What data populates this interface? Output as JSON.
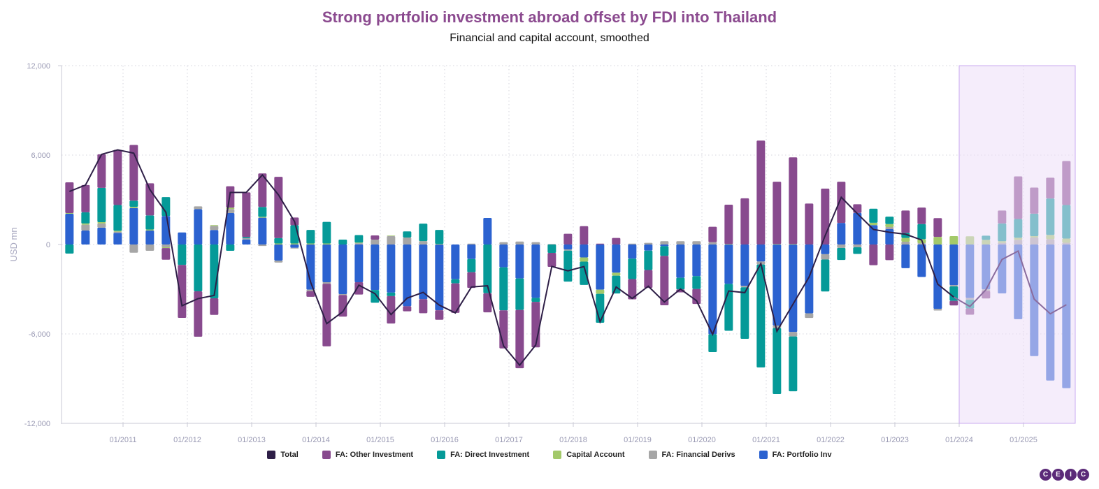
{
  "chart_data": {
    "type": "bar",
    "stacked": true,
    "title": "Strong portfolio investment abroad offset by FDI into Thailand",
    "subtitle": "Financial and capital account, smoothed",
    "ylabel": "USD mn",
    "xlabel": "",
    "ylim": [
      -12000,
      12000
    ],
    "yticks": [
      12000,
      6000,
      0,
      -6000,
      -12000
    ],
    "ytick_labels": [
      "12,000",
      "6,000",
      "0",
      "-6,000",
      "-12,000"
    ],
    "xtick_labels": [
      "01/2011",
      "01/2012",
      "01/2013",
      "01/2014",
      "01/2015",
      "01/2016",
      "01/2017",
      "01/2018",
      "01/2019",
      "01/2020",
      "01/2021",
      "01/2022",
      "01/2023",
      "01/2024",
      "01/2025"
    ],
    "grid": true,
    "legend_position": "bottom",
    "highlight": {
      "from": "2024-01",
      "color": "#ecdff8"
    },
    "x": [
      "2010-03",
      "2010-06",
      "2010-09",
      "2010-12",
      "2011-03",
      "2011-06",
      "2011-09",
      "2011-12",
      "2012-03",
      "2012-06",
      "2012-09",
      "2012-12",
      "2013-03",
      "2013-06",
      "2013-09",
      "2013-12",
      "2014-03",
      "2014-06",
      "2014-09",
      "2014-12",
      "2015-03",
      "2015-06",
      "2015-09",
      "2015-12",
      "2016-03",
      "2016-06",
      "2016-09",
      "2016-12",
      "2017-03",
      "2017-06",
      "2017-09",
      "2017-12",
      "2018-03",
      "2018-06",
      "2018-09",
      "2018-12",
      "2019-03",
      "2019-06",
      "2019-09",
      "2019-12",
      "2020-03",
      "2020-06",
      "2020-09",
      "2020-12",
      "2021-03",
      "2021-06",
      "2021-09",
      "2021-12",
      "2022-03",
      "2022-06",
      "2022-09",
      "2022-12",
      "2023-03",
      "2023-06",
      "2023-09",
      "2023-12",
      "2024-03",
      "2024-06",
      "2024-09",
      "2024-12",
      "2025-03",
      "2025-06",
      "2025-09"
    ],
    "series": [
      {
        "name": "FA: Portfolio Inv",
        "color": "#2b62d0",
        "values": [
          2060,
          940,
          1130,
          780,
          2450,
          940,
          1910,
          810,
          2370,
          970,
          2110,
          340,
          1800,
          -1080,
          -220,
          -3030,
          -2530,
          -3330,
          -2530,
          -3050,
          -3230,
          -4140,
          -3670,
          -4410,
          -2330,
          -970,
          1780,
          -1530,
          -2280,
          -3580,
          0,
          -330,
          -870,
          -3030,
          -1890,
          -950,
          -410,
          -110,
          -2230,
          -2120,
          -6020,
          -2640,
          -2780,
          -1140,
          -5440,
          -5870,
          -4620,
          -650,
          1450,
          2120,
          1300,
          1030,
          -1590,
          -2180,
          -4320,
          -2730,
          -3590,
          -3010,
          -3280,
          -5010,
          -7490,
          -9130,
          -9640
        ]
      },
      {
        "name": "FA: Financial Derivs",
        "color": "#a6a6a6",
        "values": [
          0,
          390,
          280,
          80,
          -550,
          -420,
          -190,
          0,
          190,
          280,
          270,
          80,
          -100,
          -130,
          -50,
          -100,
          -100,
          -60,
          90,
          330,
          560,
          470,
          230,
          0,
          0,
          60,
          0,
          160,
          200,
          160,
          30,
          -80,
          0,
          0,
          0,
          60,
          110,
          220,
          220,
          220,
          160,
          0,
          -90,
          -200,
          -160,
          -300,
          -310,
          -360,
          -230,
          -190,
          0,
          140,
          190,
          90,
          -110,
          -80,
          -120,
          -110,
          110,
          310,
          470,
          360,
          120
        ]
      },
      {
        "name": "Capital Account",
        "color": "#a3c96a",
        "values": [
          50,
          80,
          90,
          60,
          80,
          70,
          -50,
          0,
          0,
          50,
          90,
          0,
          60,
          70,
          70,
          70,
          70,
          0,
          40,
          0,
          40,
          0,
          0,
          40,
          0,
          0,
          0,
          0,
          0,
          0,
          0,
          0,
          -280,
          -280,
          -200,
          0,
          0,
          0,
          0,
          0,
          0,
          30,
          0,
          0,
          30,
          30,
          0,
          0,
          0,
          0,
          160,
          200,
          250,
          270,
          510,
          560,
          550,
          310,
          110,
          140,
          90,
          280,
          280
        ]
      },
      {
        "name": "FA: Direct Investment",
        "color": "#059a98",
        "values": [
          -610,
          750,
          2300,
          1730,
          410,
          940,
          1270,
          -1370,
          -3140,
          -3610,
          -420,
          80,
          660,
          360,
          1220,
          910,
          1450,
          330,
          500,
          -860,
          -230,
          410,
          1170,
          940,
          -280,
          -890,
          -3270,
          -2890,
          -2110,
          -270,
          -560,
          -2080,
          -1560,
          -1940,
          -1200,
          -1370,
          -1300,
          -660,
          -780,
          -860,
          -1200,
          -3150,
          -3460,
          -6910,
          -4430,
          -3680,
          0,
          -2140,
          -810,
          -440,
          940,
          500,
          340,
          1010,
          0,
          -970,
          -580,
          280,
          1190,
          1260,
          1510,
          2450,
          2250
        ]
      },
      {
        "name": "FA: Other Investment",
        "color": "#884a8e",
        "values": [
          2060,
          1830,
          2250,
          3700,
          3740,
          2160,
          -780,
          -3550,
          -3050,
          -1110,
          1440,
          3000,
          2250,
          4110,
          520,
          -380,
          -4200,
          -1450,
          -830,
          280,
          -1840,
          -340,
          -940,
          -640,
          -1980,
          -1050,
          -1280,
          -2550,
          -3910,
          -3050,
          -940,
          720,
          1230,
          60,
          440,
          -1360,
          -1200,
          -3310,
          -200,
          -1010,
          1030,
          2640,
          3100,
          6970,
          4180,
          5820,
          2750,
          3750,
          2760,
          580,
          -1390,
          -1050,
          1500,
          1110,
          1260,
          -310,
          -420,
          -500,
          870,
          2860,
          1750,
          1390,
          2950
        ]
      }
    ],
    "line_series": {
      "name": "Total",
      "color": "#2e1f47",
      "values": [
        3560,
        3990,
        6050,
        6350,
        6130,
        3690,
        2160,
        -4110,
        -3630,
        -3420,
        3490,
        3500,
        4670,
        3330,
        1540,
        -2530,
        -5310,
        -4510,
        -2730,
        -3300,
        -4700,
        -3600,
        -3210,
        -4070,
        -4590,
        -2850,
        -2770,
        -6810,
        -8100,
        -6740,
        -1470,
        -1770,
        -1480,
        -5190,
        -2850,
        -3620,
        -2800,
        -3860,
        -2990,
        -3770,
        -6030,
        -3120,
        -3230,
        -1280,
        -5820,
        -4000,
        -2180,
        600,
        3170,
        2070,
        1010,
        820,
        690,
        300,
        -2660,
        -3530,
        -4160,
        -3030,
        -1000,
        -440,
        -3670,
        -4650,
        -4040
      ]
    },
    "legend": [
      "Total",
      "FA: Other Investment",
      "FA: Direct Investment",
      "Capital Account",
      "FA: Financial Derivs",
      "FA: Portfolio Inv"
    ]
  },
  "legend_colors": [
    "#2e1f47",
    "#884a8e",
    "#059a98",
    "#a3c96a",
    "#a6a6a6",
    "#2b62d0"
  ],
  "logo": "CEIC"
}
